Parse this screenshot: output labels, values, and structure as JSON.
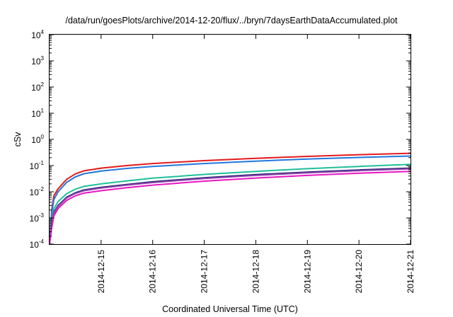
{
  "chart_data": {
    "type": "line",
    "title": "/data/run/goesPlots/archive/2014-12-20/flux/../bryn/7daysEarthDataAccumulated.plot",
    "xlabel": "Coordinated Universal Time (UTC)",
    "ylabel": "cSv",
    "y_scale": "log",
    "ylim": [
      0.0001,
      10000
    ],
    "y_ticks": [
      {
        "value": 0.0001,
        "base": "10",
        "exp": "-4"
      },
      {
        "value": 0.001,
        "base": "10",
        "exp": "-3"
      },
      {
        "value": 0.01,
        "base": "10",
        "exp": "-2"
      },
      {
        "value": 0.1,
        "base": "10",
        "exp": "-1"
      },
      {
        "value": 1,
        "base": "10",
        "exp": "0"
      },
      {
        "value": 10,
        "base": "10",
        "exp": "1"
      },
      {
        "value": 100,
        "base": "10",
        "exp": "2"
      },
      {
        "value": 1000,
        "base": "10",
        "exp": "3"
      },
      {
        "value": 10000,
        "base": "10",
        "exp": "4"
      }
    ],
    "xlim": [
      "2014-12-14T00:00",
      "2014-12-21T00:00"
    ],
    "x_ticks": [
      {
        "value": "2014-12-15T00:00",
        "label": "2014-12-15"
      },
      {
        "value": "2014-12-16T00:00",
        "label": "2014-12-16"
      },
      {
        "value": "2014-12-17T00:00",
        "label": "2014-12-17"
      },
      {
        "value": "2014-12-18T00:00",
        "label": "2014-12-18"
      },
      {
        "value": "2014-12-19T00:00",
        "label": "2014-12-19"
      },
      {
        "value": "2014-12-20T00:00",
        "label": "2014-12-20"
      },
      {
        "value": "2014-12-21T00:00",
        "label": "2014-12-21"
      }
    ],
    "grid": false,
    "legend": "none",
    "series": [
      {
        "color": "#e41a1c",
        "points": [
          [
            "2014-12-14T00:00",
            0.0001
          ],
          [
            "2014-12-14T01:00",
            0.002
          ],
          [
            "2014-12-14T02:00",
            0.007
          ],
          [
            "2014-12-14T04:00",
            0.013
          ],
          [
            "2014-12-14T08:00",
            0.03
          ],
          [
            "2014-12-14T12:00",
            0.048
          ],
          [
            "2014-12-14T16:00",
            0.063
          ],
          [
            "2014-12-15T00:00",
            0.08
          ],
          [
            "2014-12-15T12:00",
            0.1
          ],
          [
            "2014-12-16T00:00",
            0.12
          ],
          [
            "2014-12-17T00:00",
            0.155
          ],
          [
            "2014-12-18T00:00",
            0.19
          ],
          [
            "2014-12-19T00:00",
            0.225
          ],
          [
            "2014-12-20T00:00",
            0.26
          ],
          [
            "2014-12-21T00:00",
            0.295
          ]
        ]
      },
      {
        "color": "#2277dd",
        "points": [
          [
            "2014-12-14T00:00",
            0.0001
          ],
          [
            "2014-12-14T01:00",
            0.0015
          ],
          [
            "2014-12-14T02:00",
            0.005
          ],
          [
            "2014-12-14T04:00",
            0.01
          ],
          [
            "2014-12-14T08:00",
            0.023
          ],
          [
            "2014-12-14T12:00",
            0.037
          ],
          [
            "2014-12-14T16:00",
            0.049
          ],
          [
            "2014-12-15T00:00",
            0.062
          ],
          [
            "2014-12-15T12:00",
            0.078
          ],
          [
            "2014-12-16T00:00",
            0.093
          ],
          [
            "2014-12-17T00:00",
            0.12
          ],
          [
            "2014-12-18T00:00",
            0.148
          ],
          [
            "2014-12-19T00:00",
            0.177
          ],
          [
            "2014-12-20T00:00",
            0.205
          ],
          [
            "2014-12-21T00:00",
            0.232
          ]
        ]
      },
      {
        "color": "#1fbf9a",
        "points": [
          [
            "2014-12-14T00:00",
            0.0001
          ],
          [
            "2014-12-14T01:00",
            0.0007
          ],
          [
            "2014-12-14T02:00",
            0.0022
          ],
          [
            "2014-12-14T04:00",
            0.0042
          ],
          [
            "2014-12-14T08:00",
            0.0085
          ],
          [
            "2014-12-14T12:00",
            0.0125
          ],
          [
            "2014-12-14T16:00",
            0.016
          ],
          [
            "2014-12-15T00:00",
            0.02
          ],
          [
            "2014-12-15T12:00",
            0.026
          ],
          [
            "2014-12-16T00:00",
            0.033
          ],
          [
            "2014-12-17T00:00",
            0.046
          ],
          [
            "2014-12-18T00:00",
            0.06
          ],
          [
            "2014-12-19T00:00",
            0.076
          ],
          [
            "2014-12-20T00:00",
            0.093
          ],
          [
            "2014-12-21T00:00",
            0.112
          ]
        ]
      },
      {
        "color": "#1c1c6b",
        "points": [
          [
            "2014-12-14T00:00",
            0.0001
          ],
          [
            "2014-12-14T01:00",
            0.0005
          ],
          [
            "2014-12-14T02:00",
            0.0016
          ],
          [
            "2014-12-14T04:00",
            0.003
          ],
          [
            "2014-12-14T08:00",
            0.0062
          ],
          [
            "2014-12-14T12:00",
            0.0091
          ],
          [
            "2014-12-14T16:00",
            0.0117
          ],
          [
            "2014-12-15T00:00",
            0.0147
          ],
          [
            "2014-12-15T12:00",
            0.019
          ],
          [
            "2014-12-16T00:00",
            0.024
          ],
          [
            "2014-12-17T00:00",
            0.034
          ],
          [
            "2014-12-18T00:00",
            0.045
          ],
          [
            "2014-12-19T00:00",
            0.056
          ],
          [
            "2014-12-20T00:00",
            0.068
          ],
          [
            "2014-12-21T00:00",
            0.08
          ]
        ]
      },
      {
        "color": "#8e44ad",
        "points": [
          [
            "2014-12-14T00:00",
            0.0001
          ],
          [
            "2014-12-14T01:00",
            0.00048
          ],
          [
            "2014-12-14T02:00",
            0.0015
          ],
          [
            "2014-12-14T04:00",
            0.0028
          ],
          [
            "2014-12-14T08:00",
            0.0058
          ],
          [
            "2014-12-14T12:00",
            0.0086
          ],
          [
            "2014-12-14T16:00",
            0.011
          ],
          [
            "2014-12-15T00:00",
            0.0138
          ],
          [
            "2014-12-15T12:00",
            0.018
          ],
          [
            "2014-12-16T00:00",
            0.0225
          ],
          [
            "2014-12-17T00:00",
            0.032
          ],
          [
            "2014-12-18T00:00",
            0.042
          ],
          [
            "2014-12-19T00:00",
            0.053
          ],
          [
            "2014-12-20T00:00",
            0.064
          ],
          [
            "2014-12-21T00:00",
            0.075
          ]
        ]
      },
      {
        "color": "#e815c0",
        "points": [
          [
            "2014-12-14T00:00",
            0.0001
          ],
          [
            "2014-12-14T01:00",
            0.0004
          ],
          [
            "2014-12-14T02:00",
            0.0012
          ],
          [
            "2014-12-14T04:00",
            0.0023
          ],
          [
            "2014-12-14T08:00",
            0.0047
          ],
          [
            "2014-12-14T12:00",
            0.007
          ],
          [
            "2014-12-14T16:00",
            0.0089
          ],
          [
            "2014-12-15T00:00",
            0.011
          ],
          [
            "2014-12-15T12:00",
            0.0143
          ],
          [
            "2014-12-16T00:00",
            0.018
          ],
          [
            "2014-12-17T00:00",
            0.0255
          ],
          [
            "2014-12-18T00:00",
            0.0335
          ],
          [
            "2014-12-19T00:00",
            0.042
          ],
          [
            "2014-12-20T00:00",
            0.051
          ],
          [
            "2014-12-21T00:00",
            0.06
          ]
        ]
      }
    ]
  }
}
